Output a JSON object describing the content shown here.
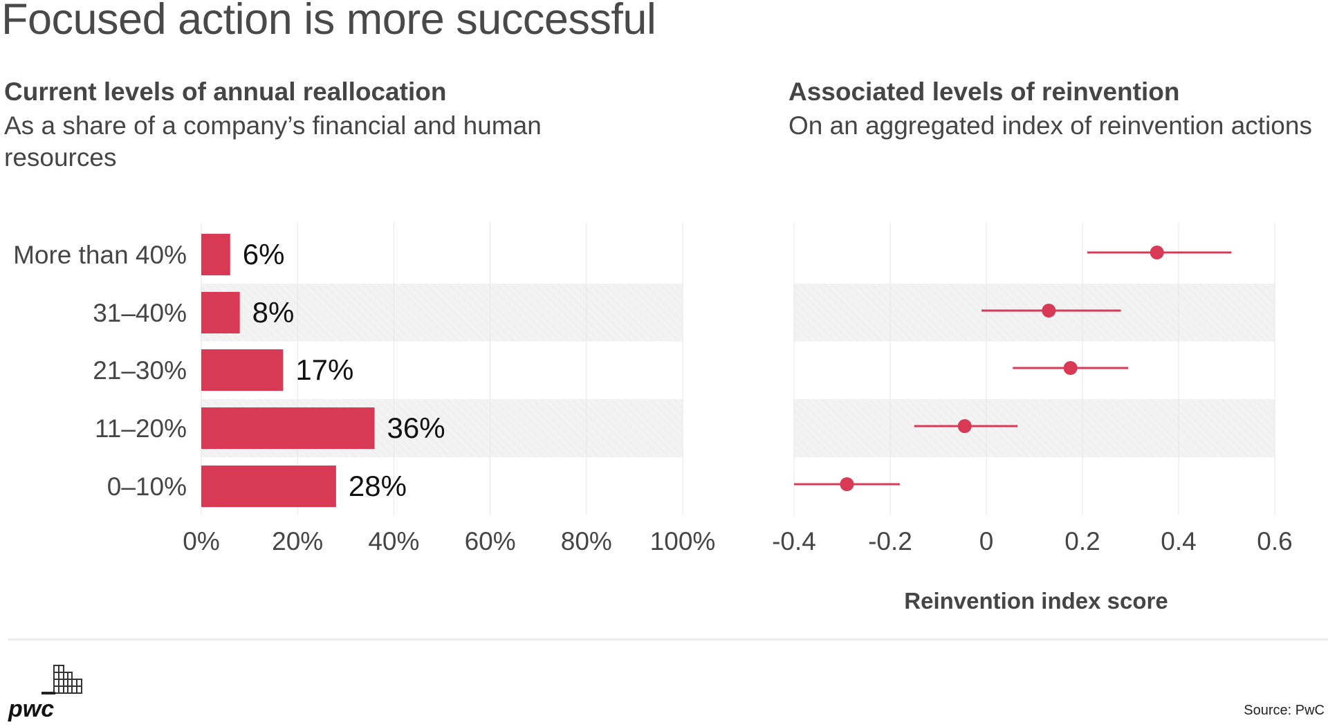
{
  "title": "Focused action is more successful",
  "left_panel": {
    "heading": "Current levels of annual reallocation",
    "subheading": "As a share of a company’s financial and human resources"
  },
  "right_panel": {
    "heading": "Associated levels of reinvention",
    "subheading": "On an aggregated index of reinvention actions"
  },
  "source": "Source: PwC",
  "logo_text": "pwc",
  "colors": {
    "accent": "#d83a56",
    "text": "#454545",
    "band": "#f2f2f2",
    "grid": "#e6e6e6"
  },
  "chart_data": [
    {
      "type": "bar",
      "orientation": "horizontal",
      "categories": [
        "More than 40%",
        "31–40%",
        "21–30%",
        "11–20%",
        "0–10%"
      ],
      "values": [
        6,
        8,
        17,
        36,
        28
      ],
      "value_labels": [
        "6%",
        "8%",
        "17%",
        "36%",
        "28%"
      ],
      "xlim": [
        0,
        100
      ],
      "xticks": [
        0,
        20,
        40,
        60,
        80,
        100
      ],
      "xtick_labels": [
        "0%",
        "20%",
        "40%",
        "60%",
        "80%",
        "100%"
      ],
      "grid": true
    },
    {
      "type": "scatter",
      "subtype": "point-with-error-bars",
      "categories": [
        "More than 40%",
        "31–40%",
        "21–30%",
        "11–20%",
        "0–10%"
      ],
      "points": [
        {
          "value": 0.355,
          "low": 0.21,
          "high": 0.51
        },
        {
          "value": 0.13,
          "low": -0.01,
          "high": 0.28
        },
        {
          "value": 0.175,
          "low": 0.055,
          "high": 0.295
        },
        {
          "value": -0.045,
          "low": -0.15,
          "high": 0.065
        },
        {
          "value": -0.29,
          "low": -0.4,
          "high": -0.18
        }
      ],
      "xlim": [
        -0.4,
        0.6
      ],
      "xticks": [
        -0.4,
        -0.2,
        0,
        0.2,
        0.4,
        0.6
      ],
      "xtick_labels": [
        "-0.4",
        "-0.2",
        "0",
        "0.2",
        "0.4",
        "0.6"
      ],
      "xlabel": "Reinvention index score",
      "grid": true
    }
  ]
}
